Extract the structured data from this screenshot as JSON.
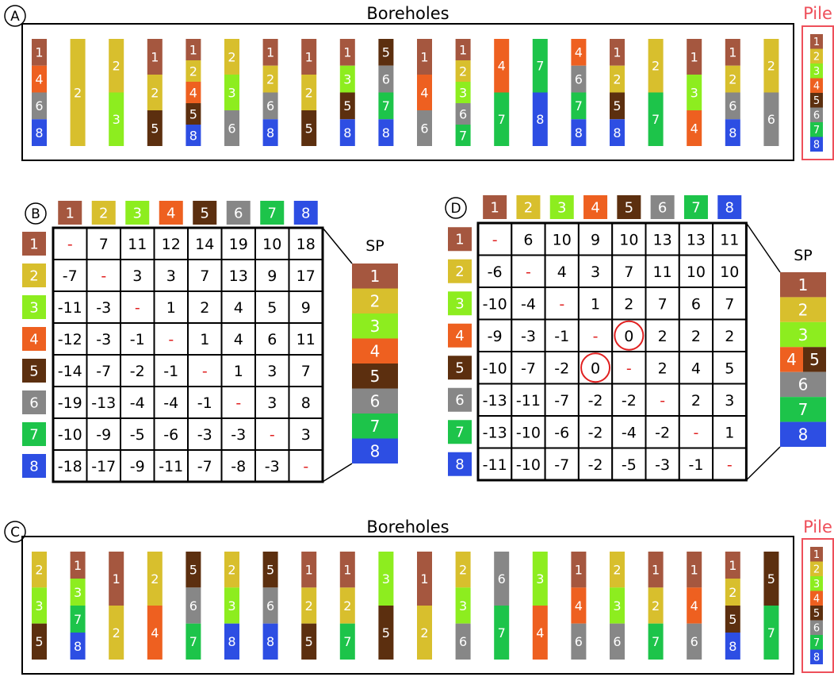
{
  "colors": {
    "1": "#a5573f",
    "2": "#d8bf2d",
    "3": "#8ded1f",
    "4": "#ee6020",
    "5": "#5c2f0f",
    "6": "#878787",
    "7": "#1dc44a",
    "8": "#2d4ee3",
    "pile_outline": "#ee4f5a",
    "pile_text": "#ee4f5a",
    "dash": "#e02020",
    "circle": "#e02020"
  },
  "panels": {
    "A": {
      "letter": "A",
      "title": "Boreholes",
      "pile_label": "Pile",
      "boreholes": [
        [
          1,
          4,
          6,
          8
        ],
        [
          2
        ],
        [
          2,
          3
        ],
        [
          1,
          2,
          5
        ],
        [
          1,
          2,
          4,
          5,
          8
        ],
        [
          2,
          3,
          6
        ],
        [
          1,
          2,
          6,
          8
        ],
        [
          1,
          2,
          5
        ],
        [
          1,
          3,
          5,
          8
        ],
        [
          5,
          6,
          7,
          8
        ],
        [
          1,
          4,
          6
        ],
        [
          1,
          2,
          3,
          6,
          7
        ],
        [
          4,
          7
        ],
        [
          7,
          8
        ],
        [
          4,
          6,
          7,
          8
        ],
        [
          1,
          2,
          5,
          8
        ],
        [
          2,
          7
        ],
        [
          1,
          3,
          4
        ],
        [
          1,
          2,
          6,
          8
        ],
        [
          2,
          6
        ]
      ],
      "pile": [
        1,
        2,
        3,
        4,
        5,
        6,
        7,
        8
      ]
    },
    "B": {
      "letter": "B",
      "header": [
        1,
        2,
        3,
        4,
        5,
        6,
        7,
        8
      ],
      "rows": [
        1,
        2,
        3,
        4,
        5,
        6,
        7,
        8
      ],
      "matrix": [
        [
          "-",
          "7",
          "11",
          "12",
          "14",
          "19",
          "10",
          "18"
        ],
        [
          "-7",
          "-",
          "3",
          "3",
          "7",
          "13",
          "9",
          "17"
        ],
        [
          "-11",
          "-3",
          "-",
          "1",
          "2",
          "4",
          "5",
          "9"
        ],
        [
          "-12",
          "-3",
          "-1",
          "-",
          "1",
          "4",
          "6",
          "11"
        ],
        [
          "-14",
          "-7",
          "-2",
          "-1",
          "-",
          "1",
          "3",
          "7"
        ],
        [
          "-19",
          "-13",
          "-4",
          "-4",
          "-1",
          "-",
          "3",
          "8"
        ],
        [
          "-10",
          "-9",
          "-5",
          "-6",
          "-3",
          "-3",
          "-",
          "3"
        ],
        [
          "-18",
          "-17",
          "-9",
          "-11",
          "-7",
          "-8",
          "-3",
          "-"
        ]
      ],
      "sp_label": "SP",
      "sp": [
        [
          1
        ],
        [
          2
        ],
        [
          3
        ],
        [
          4
        ],
        [
          5
        ],
        [
          6
        ],
        [
          7
        ],
        [
          8
        ]
      ]
    },
    "C": {
      "letter": "C",
      "title": "Boreholes",
      "pile_label": "Pile",
      "boreholes": [
        [
          2,
          3,
          5
        ],
        [
          1,
          3,
          7,
          8
        ],
        [
          1,
          2
        ],
        [
          2,
          4
        ],
        [
          5,
          6,
          7
        ],
        [
          2,
          3,
          8
        ],
        [
          5,
          6,
          8
        ],
        [
          1,
          2,
          5
        ],
        [
          1,
          2,
          7
        ],
        [
          3,
          5
        ],
        [
          1,
          2
        ],
        [
          2,
          3,
          6
        ],
        [
          6,
          7
        ],
        [
          3,
          4
        ],
        [
          1,
          4,
          6
        ],
        [
          2,
          3,
          6
        ],
        [
          1,
          2,
          7
        ],
        [
          1,
          4,
          6
        ],
        [
          1,
          2,
          5,
          8
        ],
        [
          5,
          7
        ]
      ],
      "pile": [
        1,
        2,
        3,
        4,
        5,
        6,
        7,
        8
      ]
    },
    "D": {
      "letter": "D",
      "header": [
        1,
        2,
        3,
        4,
        5,
        6,
        7,
        8
      ],
      "rows": [
        1,
        2,
        3,
        4,
        5,
        6,
        7,
        8
      ],
      "matrix": [
        [
          "-",
          "6",
          "10",
          "9",
          "10",
          "13",
          "13",
          "11"
        ],
        [
          "-6",
          "-",
          "4",
          "3",
          "7",
          "11",
          "10",
          "10"
        ],
        [
          "-10",
          "-4",
          "-",
          "1",
          "2",
          "7",
          "6",
          "7"
        ],
        [
          "-9",
          "-3",
          "-1",
          "-",
          "0",
          "2",
          "2",
          "2"
        ],
        [
          "-10",
          "-7",
          "-2",
          "0",
          "-",
          "2",
          "4",
          "5"
        ],
        [
          "-13",
          "-11",
          "-7",
          "-2",
          "-2",
          "-",
          "2",
          "3"
        ],
        [
          "-13",
          "-10",
          "-6",
          "-2",
          "-4",
          "-2",
          "-",
          "1"
        ],
        [
          "-11",
          "-10",
          "-7",
          "-2",
          "-5",
          "-3",
          "-1",
          "-"
        ]
      ],
      "circled": [
        [
          3,
          4
        ],
        [
          4,
          3
        ]
      ],
      "sp_label": "SP",
      "sp": [
        [
          1
        ],
        [
          2
        ],
        [
          3
        ],
        [
          4,
          5
        ],
        [
          6
        ],
        [
          7
        ],
        [
          8
        ]
      ]
    }
  }
}
